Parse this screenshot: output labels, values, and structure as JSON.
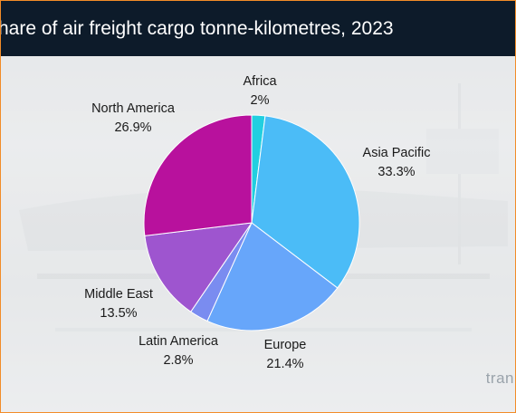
{
  "header": {
    "title": "hare of air freight cargo tonne-kilometres, 2023"
  },
  "brand": "tran",
  "chart_data": {
    "type": "pie",
    "title": "hare of air freight cargo tonne-kilometres, 2023",
    "start_angle_deg": 0,
    "direction": "clockwise",
    "slices": [
      {
        "name": "Africa",
        "value": 2,
        "label": "2%",
        "color": "#22cfe0"
      },
      {
        "name": "Asia Pacific",
        "value": 33.3,
        "label": "33.3%",
        "color": "#4bbcf7"
      },
      {
        "name": "Europe",
        "value": 21.4,
        "label": "21.4%",
        "color": "#67a6fa"
      },
      {
        "name": "Latin America",
        "value": 2.8,
        "label": "2.8%",
        "color": "#7a8cf0"
      },
      {
        "name": "Middle East",
        "value": 13.5,
        "label": "13.5%",
        "color": "#9e55cf"
      },
      {
        "name": "North America",
        "value": 26.9,
        "label": "26.9%",
        "color": "#b8119d"
      }
    ]
  }
}
